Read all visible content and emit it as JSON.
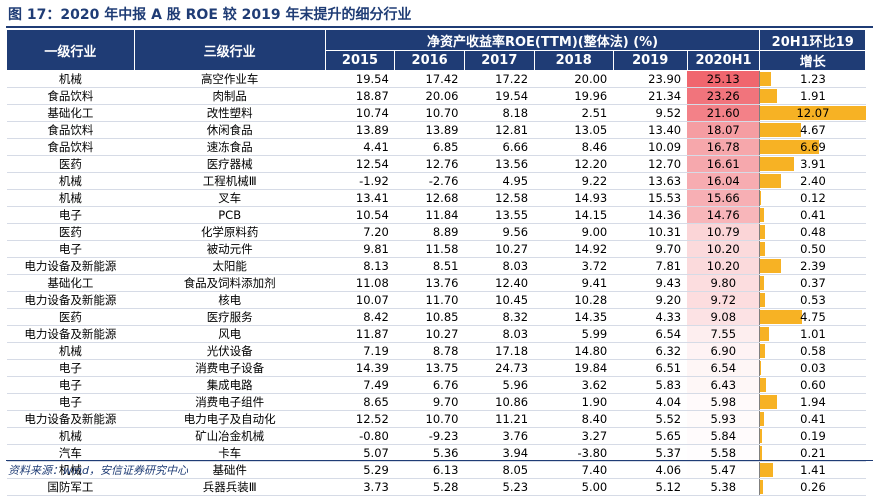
{
  "title": "图 17：2020 年中报 A 股 ROE 较 2019 年末提升的细分行业",
  "source": "资料来源：wind，安信证券研究中心",
  "colors": {
    "header_bg": "#1f3c75",
    "heat_max": "#f0666e",
    "bar": "#f7b224"
  },
  "headers": {
    "col1": "一级行业",
    "col2": "三级行业",
    "roe_group": "净资产收益率ROE(TTM)(整体法) (%)",
    "years": [
      "2015",
      "2016",
      "2017",
      "2018",
      "2019",
      "2020H1"
    ],
    "growth_line1": "20H1环比19",
    "growth_line2": "增长"
  },
  "rows": [
    {
      "l1": "机械",
      "l3": "高空作业车",
      "v": [
        "19.54",
        "17.42",
        "17.22",
        "20.00",
        "23.90",
        "25.13"
      ],
      "g": "1.23"
    },
    {
      "l1": "食品饮料",
      "l3": "肉制品",
      "v": [
        "18.87",
        "20.06",
        "19.54",
        "19.96",
        "21.34",
        "23.26"
      ],
      "g": "1.91"
    },
    {
      "l1": "基础化工",
      "l3": "改性塑料",
      "v": [
        "10.74",
        "10.70",
        "8.18",
        "2.51",
        "9.52",
        "21.60"
      ],
      "g": "12.07"
    },
    {
      "l1": "食品饮料",
      "l3": "休闲食品",
      "v": [
        "13.89",
        "13.89",
        "12.81",
        "13.05",
        "13.40",
        "18.07"
      ],
      "g": "4.67"
    },
    {
      "l1": "食品饮料",
      "l3": "速冻食品",
      "v": [
        "4.41",
        "6.85",
        "6.66",
        "8.46",
        "10.09",
        "16.78"
      ],
      "g": "6.69"
    },
    {
      "l1": "医药",
      "l3": "医疗器械",
      "v": [
        "12.54",
        "12.76",
        "13.56",
        "12.20",
        "12.70",
        "16.61"
      ],
      "g": "3.91"
    },
    {
      "l1": "机械",
      "l3": "工程机械Ⅲ",
      "v": [
        "-1.92",
        "-2.76",
        "4.95",
        "9.22",
        "13.63",
        "16.04"
      ],
      "g": "2.40"
    },
    {
      "l1": "机械",
      "l3": "叉车",
      "v": [
        "13.41",
        "12.68",
        "12.58",
        "14.93",
        "15.53",
        "15.66"
      ],
      "g": "0.12"
    },
    {
      "l1": "电子",
      "l3": "PCB",
      "v": [
        "10.54",
        "11.84",
        "13.55",
        "14.15",
        "14.36",
        "14.76"
      ],
      "g": "0.41"
    },
    {
      "l1": "医药",
      "l3": "化学原料药",
      "v": [
        "7.20",
        "8.89",
        "9.56",
        "9.00",
        "10.31",
        "10.79"
      ],
      "g": "0.48"
    },
    {
      "l1": "电子",
      "l3": "被动元件",
      "v": [
        "9.81",
        "11.58",
        "10.27",
        "14.92",
        "9.70",
        "10.20"
      ],
      "g": "0.50"
    },
    {
      "l1": "电力设备及新能源",
      "l3": "太阳能",
      "v": [
        "8.13",
        "8.51",
        "8.03",
        "3.72",
        "7.81",
        "10.20"
      ],
      "g": "2.39"
    },
    {
      "l1": "基础化工",
      "l3": "食品及饲料添加剂",
      "v": [
        "11.08",
        "13.76",
        "12.40",
        "9.41",
        "9.43",
        "9.80"
      ],
      "g": "0.37"
    },
    {
      "l1": "电力设备及新能源",
      "l3": "核电",
      "v": [
        "10.07",
        "11.70",
        "10.45",
        "10.28",
        "9.20",
        "9.72"
      ],
      "g": "0.53"
    },
    {
      "l1": "医药",
      "l3": "医疗服务",
      "v": [
        "8.42",
        "10.85",
        "8.32",
        "14.35",
        "4.33",
        "9.08"
      ],
      "g": "4.75"
    },
    {
      "l1": "电力设备及新能源",
      "l3": "风电",
      "v": [
        "11.87",
        "10.27",
        "8.03",
        "5.99",
        "6.54",
        "7.55"
      ],
      "g": "1.01"
    },
    {
      "l1": "机械",
      "l3": "光伏设备",
      "v": [
        "7.19",
        "8.78",
        "17.18",
        "14.80",
        "6.32",
        "6.90"
      ],
      "g": "0.58"
    },
    {
      "l1": "电子",
      "l3": "消费电子设备",
      "v": [
        "14.39",
        "13.75",
        "24.73",
        "19.84",
        "6.51",
        "6.54"
      ],
      "g": "0.03"
    },
    {
      "l1": "电子",
      "l3": "集成电路",
      "v": [
        "7.49",
        "6.76",
        "5.96",
        "3.62",
        "5.83",
        "6.43"
      ],
      "g": "0.60"
    },
    {
      "l1": "电子",
      "l3": "消费电子组件",
      "v": [
        "8.65",
        "9.70",
        "10.86",
        "1.90",
        "4.04",
        "5.98"
      ],
      "g": "1.94"
    },
    {
      "l1": "电力设备及新能源",
      "l3": "电力电子及自动化",
      "v": [
        "12.52",
        "10.70",
        "11.21",
        "8.40",
        "5.52",
        "5.93"
      ],
      "g": "0.41"
    },
    {
      "l1": "机械",
      "l3": "矿山冶金机械",
      "v": [
        "-0.80",
        "-9.23",
        "3.76",
        "3.27",
        "5.65",
        "5.84"
      ],
      "g": "0.19"
    },
    {
      "l1": "汽车",
      "l3": "卡车",
      "v": [
        "5.07",
        "5.36",
        "3.94",
        "-3.80",
        "5.37",
        "5.58"
      ],
      "g": "0.21"
    },
    {
      "l1": "机械",
      "l3": "基础件",
      "v": [
        "5.29",
        "6.13",
        "8.05",
        "7.40",
        "4.06",
        "5.47"
      ],
      "g": "1.41"
    },
    {
      "l1": "国防军工",
      "l3": "兵器兵装Ⅲ",
      "v": [
        "3.73",
        "5.28",
        "5.23",
        "5.00",
        "5.12",
        "5.38"
      ],
      "g": "0.26"
    }
  ]
}
